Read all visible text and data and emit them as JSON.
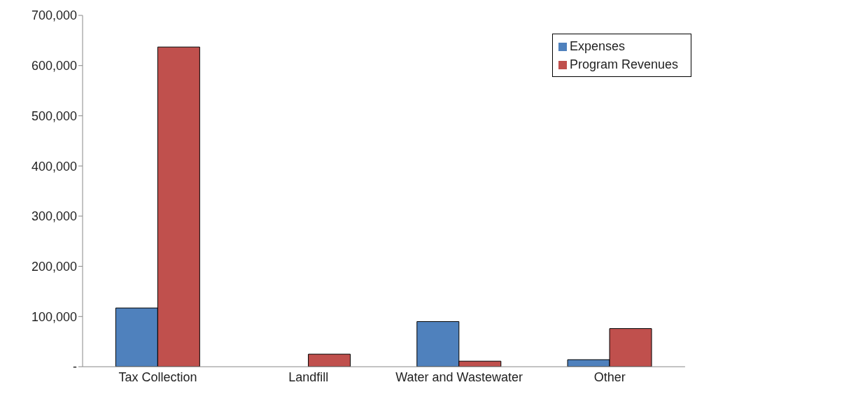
{
  "chart_data": {
    "type": "bar",
    "categories": [
      "Tax Collection",
      "Landfill",
      "Water and Wastewater",
      "Other"
    ],
    "series": [
      {
        "name": "Expenses",
        "color": "#4f81bd",
        "values": [
          117000,
          0,
          90000,
          14000
        ]
      },
      {
        "name": "Program Revenues",
        "color": "#c0504d",
        "values": [
          637000,
          25000,
          11000,
          76000
        ]
      }
    ],
    "ylim": [
      0,
      700000
    ],
    "yticks": [
      {
        "value": 0,
        "label": "-"
      },
      {
        "value": 100000,
        "label": "100,000"
      },
      {
        "value": 200000,
        "label": "200,000"
      },
      {
        "value": 300000,
        "label": "300,000"
      },
      {
        "value": 400000,
        "label": "400,000"
      },
      {
        "value": 500000,
        "label": "500,000"
      },
      {
        "value": 600000,
        "label": "600,000"
      },
      {
        "value": 700000,
        "label": "700,000"
      }
    ],
    "grid": false,
    "legend": "top right"
  }
}
